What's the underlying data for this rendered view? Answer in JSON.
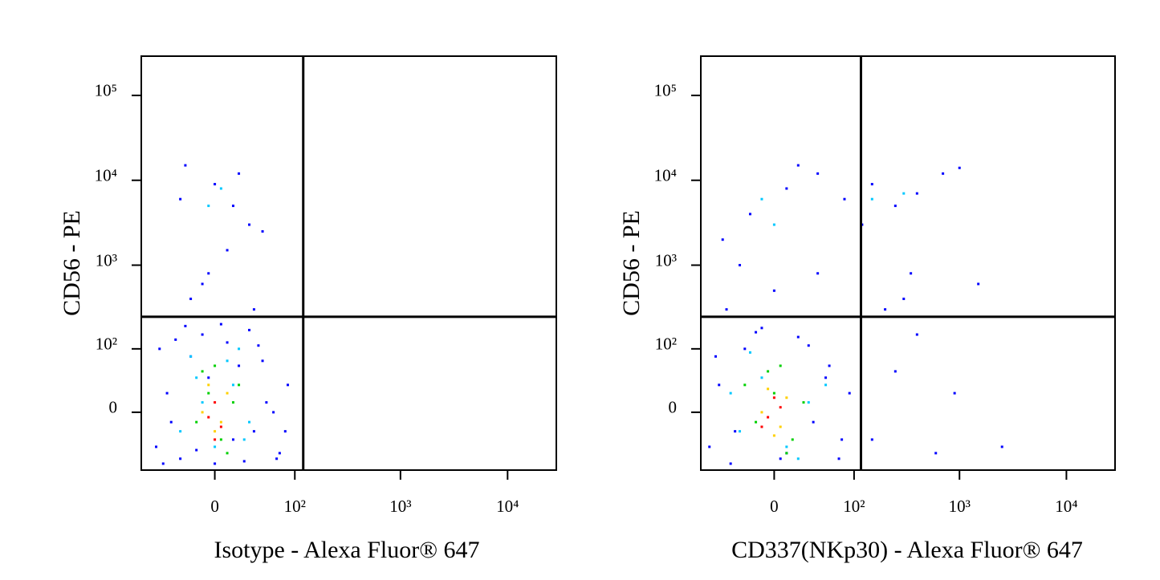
{
  "chart_data": [
    {
      "type": "scatter",
      "xlabel": "Isotype - Alexa Fluor® 647",
      "ylabel": "CD56 - PE",
      "xscale": "biexponential",
      "yscale": "biexponential",
      "xlim": [
        -86,
        28500
      ],
      "ylim": [
        -85,
        290000
      ],
      "xticks": [
        0,
        {
          "value": 100,
          "label": "10²"
        },
        {
          "value": 1000,
          "label": "10³"
        },
        {
          "value": 10000,
          "label": "10⁴"
        }
      ],
      "yticks": [
        0,
        {
          "value": 100,
          "label": "10²"
        },
        {
          "value": 1000,
          "label": "10³"
        },
        {
          "value": 10000,
          "label": "10⁴"
        },
        {
          "value": 100000,
          "label": "10⁵"
        }
      ],
      "gates": {
        "x": 121,
        "y": 245,
        "color": "#000000"
      },
      "series": [
        {
          "color": "#0000ff",
          "x": [
            -60,
            -45,
            -30,
            -20,
            -10,
            0,
            10,
            20,
            35,
            50,
            70,
            85,
            -55,
            -40,
            -25,
            -5,
            15,
            30,
            45,
            65,
            -50,
            -35,
            -15,
            5,
            25,
            40,
            60,
            80,
            -20,
            -5,
            10,
            30,
            -30,
            0,
            20,
            45,
            -10,
            15,
            -25,
            35
          ],
          "y": [
            -40,
            20,
            -60,
            80,
            150,
            -70,
            120,
            60,
            -20,
            10,
            -50,
            30,
            100,
            -10,
            190,
            40,
            -30,
            170,
            70,
            -60,
            -70,
            130,
            -45,
            200,
            -65,
            110,
            0,
            -20,
            400,
            800,
            1500,
            3000,
            6000,
            9000,
            12000,
            2500,
            600,
            5000,
            15000,
            300
          ]
        },
        {
          "color": "#00c8ff",
          "x": [
            -30,
            -15,
            0,
            15,
            30,
            -20,
            10,
            25,
            -5,
            5,
            -10,
            20
          ],
          "y": [
            -20,
            40,
            -40,
            30,
            -10,
            80,
            70,
            -30,
            5000,
            8000,
            10,
            100
          ]
        },
        {
          "color": "#00d000",
          "x": [
            -15,
            -5,
            5,
            15,
            -10,
            10,
            0,
            20
          ],
          "y": [
            -10,
            20,
            -30,
            10,
            50,
            -50,
            60,
            30
          ]
        },
        {
          "color": "#ffd000",
          "x": [
            -10,
            0,
            10,
            -5,
            5
          ],
          "y": [
            0,
            -20,
            20,
            30,
            -10
          ]
        },
        {
          "color": "#ff0000",
          "x": [
            -5,
            0,
            5,
            0
          ],
          "y": [
            -5,
            10,
            -15,
            -30
          ]
        }
      ]
    },
    {
      "type": "scatter",
      "xlabel": "CD337(NKp30) - Alexa Fluor® 647",
      "ylabel": "CD56 - PE",
      "xscale": "biexponential",
      "yscale": "biexponential",
      "xlim": [
        -86,
        28500
      ],
      "ylim": [
        -85,
        290000
      ],
      "xticks": [
        0,
        {
          "value": 100,
          "label": "10²"
        },
        {
          "value": 1000,
          "label": "10³"
        },
        {
          "value": 10000,
          "label": "10⁴"
        }
      ],
      "yticks": [
        0,
        {
          "value": 100,
          "label": "10²"
        },
        {
          "value": 1000,
          "label": "10³"
        },
        {
          "value": 10000,
          "label": "10⁴"
        },
        {
          "value": 100000,
          "label": "10⁵"
        }
      ],
      "gates": {
        "x": 117,
        "y": 245,
        "color": "#000000"
      },
      "series": [
        {
          "color": "#0000ff",
          "x": [
            -70,
            -55,
            -40,
            -25,
            -10,
            5,
            20,
            35,
            55,
            75,
            90,
            -60,
            -35,
            -15,
            10,
            30,
            50,
            70,
            -45,
            0,
            40,
            150,
            250,
            400,
            600,
            900,
            200,
            350,
            1500,
            2500,
            -50,
            -20,
            10,
            40,
            80,
            150,
            250,
            400,
            700,
            -30,
            20,
            120,
            300,
            1000
          ],
          "y": [
            -40,
            30,
            -70,
            100,
            180,
            -60,
            140,
            -10,
            60,
            -30,
            20,
            80,
            -20,
            160,
            -50,
            110,
            40,
            -60,
            300,
            500,
            800,
            -30,
            50,
            150,
            -50,
            20,
            300,
            800,
            600,
            -40,
            2000,
            4000,
            8000,
            12000,
            6000,
            9000,
            5000,
            7000,
            12000,
            1000,
            15000,
            3000,
            400,
            14000
          ]
        },
        {
          "color": "#00c8ff",
          "x": [
            -30,
            -10,
            10,
            30,
            -20,
            20,
            -40,
            50,
            150,
            300,
            0,
            -10
          ],
          "y": [
            -20,
            40,
            -40,
            10,
            90,
            -60,
            20,
            30,
            6000,
            7000,
            3000,
            6000
          ]
        },
        {
          "color": "#00d000",
          "x": [
            -15,
            0,
            15,
            -5,
            10,
            25,
            -25,
            5
          ],
          "y": [
            -10,
            20,
            -30,
            50,
            -50,
            10,
            30,
            60
          ]
        },
        {
          "color": "#ffd000",
          "x": [
            -10,
            5,
            -5,
            10,
            0
          ],
          "y": [
            0,
            -15,
            25,
            15,
            -25
          ]
        },
        {
          "color": "#ff0000",
          "x": [
            -5,
            5,
            0,
            -10
          ],
          "y": [
            -5,
            5,
            15,
            -15
          ]
        }
      ]
    }
  ]
}
